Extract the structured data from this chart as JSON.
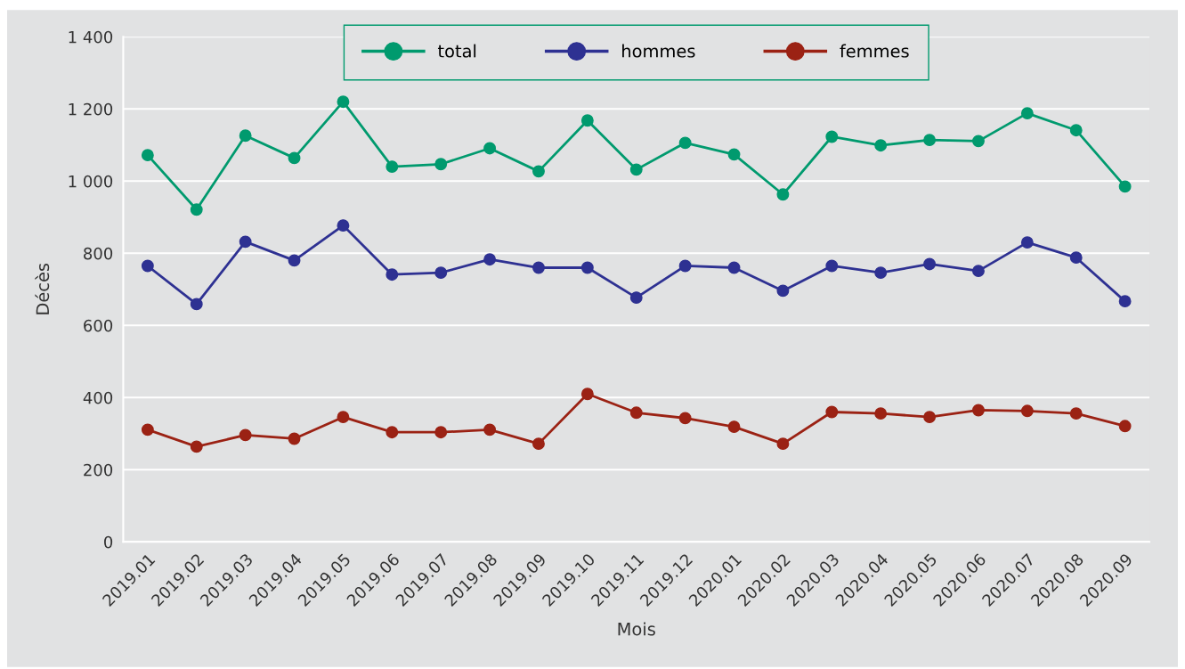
{
  "chart_data": {
    "type": "line",
    "xlabel": "Mois",
    "ylabel": "Décès",
    "categories": [
      "2019.01",
      "2019.02",
      "2019.03",
      "2019.04",
      "2019.05",
      "2019.06",
      "2019.07",
      "2019.08",
      "2019.09",
      "2019.10",
      "2019.11",
      "2019.12",
      "2020.01",
      "2020.02",
      "2020.03",
      "2020.04",
      "2020.05",
      "2020.06",
      "2020.07",
      "2020.08",
      "2020.09"
    ],
    "series": [
      {
        "name": "total",
        "color": "#009a6e",
        "values": [
          1072,
          921,
          1126,
          1064,
          1220,
          1040,
          1047,
          1091,
          1027,
          1168,
          1032,
          1106,
          1074,
          963,
          1123,
          1099,
          1114,
          1111,
          1188,
          1141,
          985
        ]
      },
      {
        "name": "hommes",
        "color": "#2e3192",
        "values": [
          765,
          659,
          832,
          780,
          877,
          741,
          746,
          783,
          760,
          760,
          677,
          765,
          760,
          696,
          765,
          746,
          770,
          751,
          830,
          788,
          667
        ]
      },
      {
        "name": "femmes",
        "color": "#9b2214",
        "values": [
          311,
          264,
          296,
          286,
          346,
          304,
          304,
          311,
          272,
          410,
          358,
          343,
          319,
          272,
          360,
          356,
          346,
          365,
          363,
          356,
          321
        ]
      }
    ],
    "ylim": [
      0,
      1400
    ],
    "yticks": [
      0,
      200,
      400,
      600,
      800,
      {
        "value": 1000,
        "label": "1 000"
      },
      {
        "value": 1200,
        "label": "1 200"
      },
      {
        "value": 1400,
        "label": "1 400"
      }
    ],
    "grid": "y",
    "legend": "top",
    "marker": "circle",
    "line_style": "solid"
  }
}
